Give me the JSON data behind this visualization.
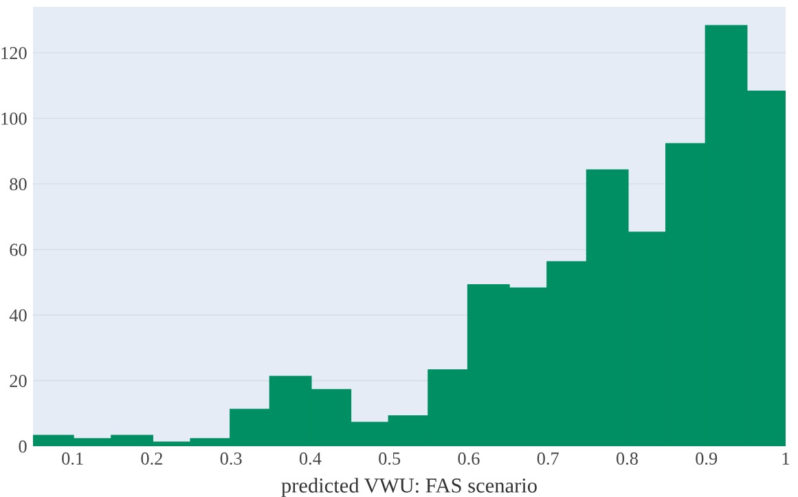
{
  "chart_data": {
    "type": "histogram",
    "xlabel": "predicted VWU: FAS scenario",
    "bins": [
      0.05,
      0.1,
      0.15,
      0.2,
      0.25,
      0.3,
      0.35,
      0.4,
      0.45,
      0.5,
      0.55,
      0.6,
      0.65,
      0.7,
      0.75,
      0.8,
      0.85,
      0.9,
      0.95,
      1.0
    ],
    "values": [
      3,
      2,
      3,
      1,
      2,
      11,
      21,
      17,
      7,
      9,
      23,
      49,
      48,
      56,
      84,
      65,
      92,
      128,
      108
    ],
    "color": "#008f62",
    "xlim": [
      0.05,
      1.0
    ],
    "xticks": [
      0.1,
      0.2,
      0.3,
      0.4,
      0.5,
      0.6,
      0.7,
      0.8,
      0.9,
      {
        "value": 1.0,
        "label": "1"
      }
    ],
    "ylim": [
      0,
      134
    ],
    "yticks": [
      0,
      20,
      40,
      60,
      80,
      100,
      120
    ],
    "grid": "y"
  }
}
